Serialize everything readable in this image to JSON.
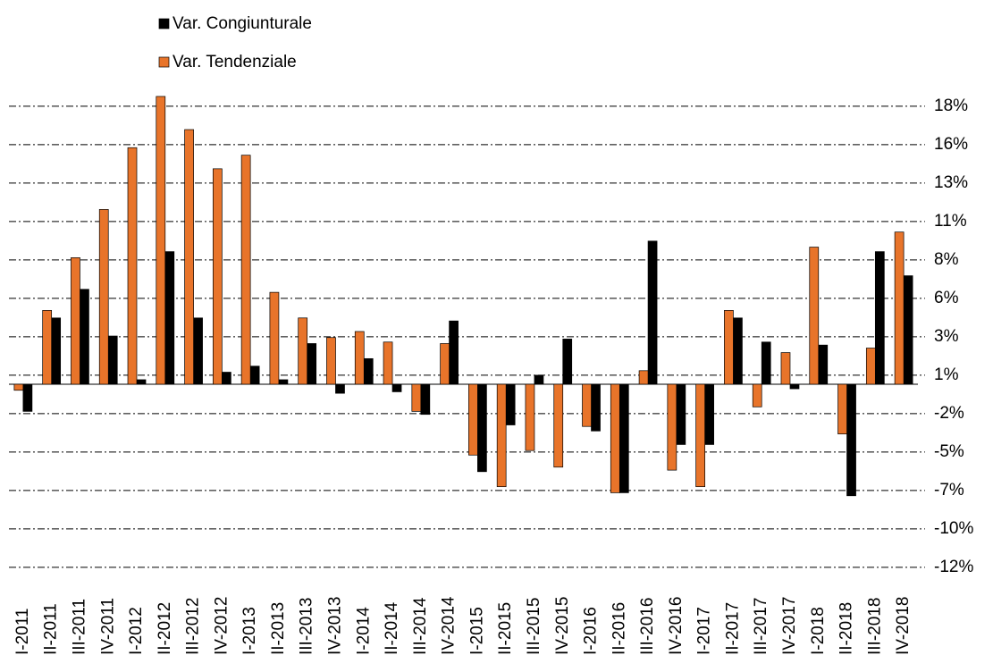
{
  "chart_data": {
    "type": "bar",
    "categories": [
      "I-2011",
      "II-2011",
      "III-2011",
      "IV-2011",
      "I-2012",
      "II-2012",
      "III-2012",
      "IV-2012",
      "I-2013",
      "II-2013",
      "III-2013",
      "IV-2013",
      "I-2014",
      "II-2014",
      "III-2014",
      "IV-2014",
      "I-2015",
      "II-2015",
      "III-2015",
      "IV-2015",
      "I-2016",
      "II-2016",
      "III-2016",
      "IV-2016",
      "I-2017",
      "II-2017",
      "III-2017",
      "IV-2017",
      "I-2018",
      "II-2018",
      "III-2018",
      "IV-2018"
    ],
    "series": [
      {
        "name": "Var. Congiunturale",
        "color": "#000000",
        "values": [
          -1.8,
          4.4,
          6.3,
          3.2,
          0.3,
          8.8,
          4.4,
          0.8,
          1.2,
          0.3,
          2.7,
          -0.6,
          1.7,
          -0.5,
          -2.0,
          4.2,
          -5.8,
          -2.7,
          0.6,
          3.0,
          -3.1,
          -7.2,
          9.5,
          -4.0,
          -4.0,
          4.4,
          2.8,
          -0.3,
          2.6,
          -7.4,
          8.8,
          7.2
        ]
      },
      {
        "name": "Var. Tendenziale",
        "color": "#e8742a",
        "values": [
          -0.4,
          4.9,
          8.4,
          11.6,
          15.7,
          19.1,
          16.9,
          14.3,
          15.2,
          6.1,
          4.4,
          3.1,
          3.5,
          2.8,
          -1.8,
          2.7,
          -4.7,
          -6.8,
          -4.4,
          -5.5,
          -2.8,
          -7.2,
          0.9,
          -5.7,
          -6.8,
          4.9,
          -1.5,
          2.1,
          9.1,
          -3.3,
          2.4,
          10.1
        ]
      }
    ],
    "ylim": [
      -12.6,
      19.4
    ],
    "yticks": [
      {
        "value": 18.45,
        "label": "18%"
      },
      {
        "value": 15.9,
        "label": "16%"
      },
      {
        "value": 13.35,
        "label": "13%"
      },
      {
        "value": 10.8,
        "label": "11%"
      },
      {
        "value": 8.25,
        "label": "8%"
      },
      {
        "value": 5.7,
        "label": "6%"
      },
      {
        "value": 3.15,
        "label": "3%"
      },
      {
        "value": 0.6,
        "label": "1%"
      },
      {
        "value": -1.95,
        "label": "-2%"
      },
      {
        "value": -4.5,
        "label": "-5%"
      },
      {
        "value": -7.05,
        "label": "-7%"
      },
      {
        "value": -9.6,
        "label": "-10%"
      },
      {
        "value": -12.15,
        "label": "-12%"
      }
    ],
    "grid": true,
    "y_axis_side": "right"
  }
}
